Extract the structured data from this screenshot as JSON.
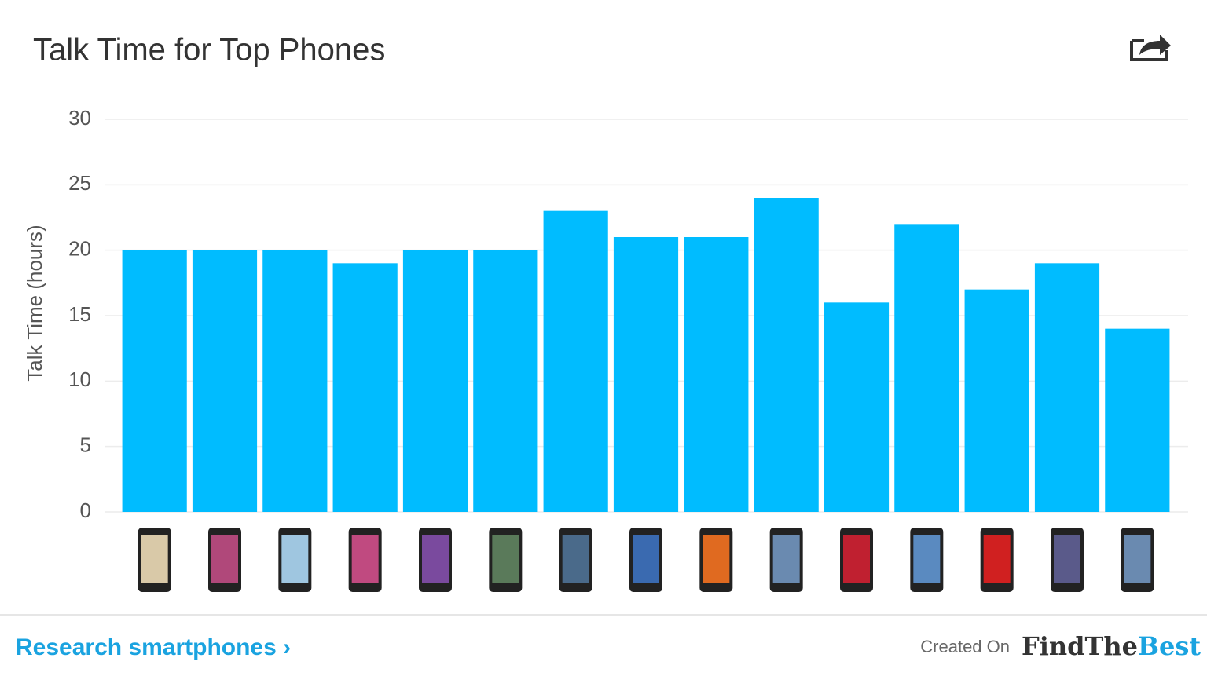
{
  "chart_data": {
    "type": "bar",
    "title": "Talk Time for Top Phones",
    "y_label": "Talk Time (hours)",
    "categories": [
      null,
      null,
      null,
      null,
      null,
      null,
      null,
      null,
      null,
      null,
      null,
      null,
      null,
      null,
      null
    ],
    "values": [
      20,
      20,
      20,
      19,
      20,
      20,
      23,
      21,
      21,
      24,
      16,
      22,
      17,
      19,
      14
    ],
    "color": "#00bcff",
    "ylim": [
      0,
      30
    ],
    "yticks": [
      0,
      5,
      10,
      15,
      20,
      25,
      30
    ],
    "grid": true
  },
  "footer": {
    "link": "Research smartphones ›",
    "created_on": "Created On",
    "brand_first": "FindThe",
    "brand_second": "Best"
  }
}
